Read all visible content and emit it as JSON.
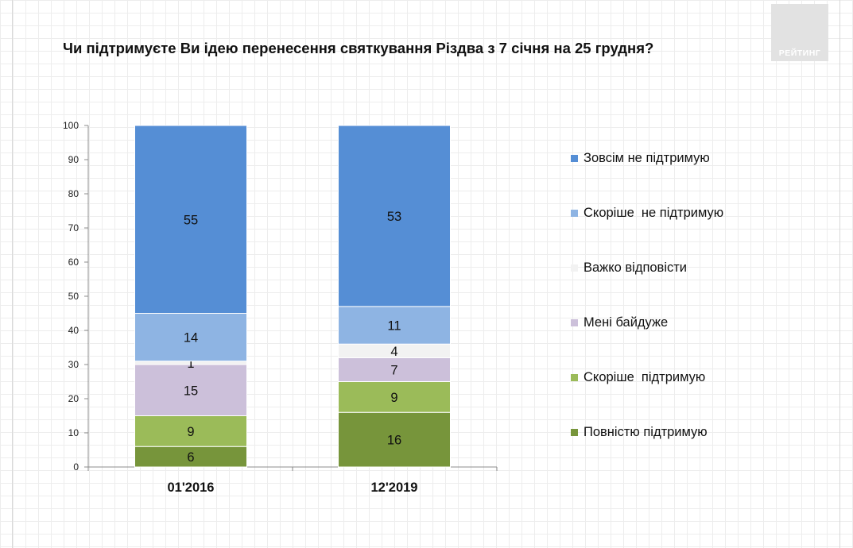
{
  "title": "Чи підтримуєте Ви ідею перенесення святкування Різдва з 7 січня на 25 грудня?",
  "logo": {
    "text": "РЕЙТИНГ"
  },
  "chart_data": {
    "type": "bar",
    "stacked": true,
    "categories": [
      "01'2016",
      "12'2019"
    ],
    "ylim": [
      0,
      100
    ],
    "yticks": [
      0,
      10,
      20,
      30,
      40,
      50,
      60,
      70,
      80,
      90,
      100
    ],
    "grid": false,
    "legend_position": "right",
    "series": [
      {
        "name": "Повністю підтримую",
        "color": "#77953b",
        "values": [
          6,
          16
        ]
      },
      {
        "name": "Скоріше  підтримую",
        "color": "#9bbb59",
        "values": [
          9,
          9
        ]
      },
      {
        "name": "Мені байдуже",
        "color": "#ccc0da",
        "values": [
          15,
          7
        ]
      },
      {
        "name": "Важко відповісти",
        "color": "#f2f2f2",
        "values": [
          1,
          4
        ]
      },
      {
        "name": "Скоріше  не підтримую",
        "color": "#8eb4e3",
        "values": [
          14,
          11
        ]
      },
      {
        "name": "Зовсім не підтримую",
        "color": "#558ed5",
        "values": [
          55,
          53
        ]
      }
    ]
  }
}
